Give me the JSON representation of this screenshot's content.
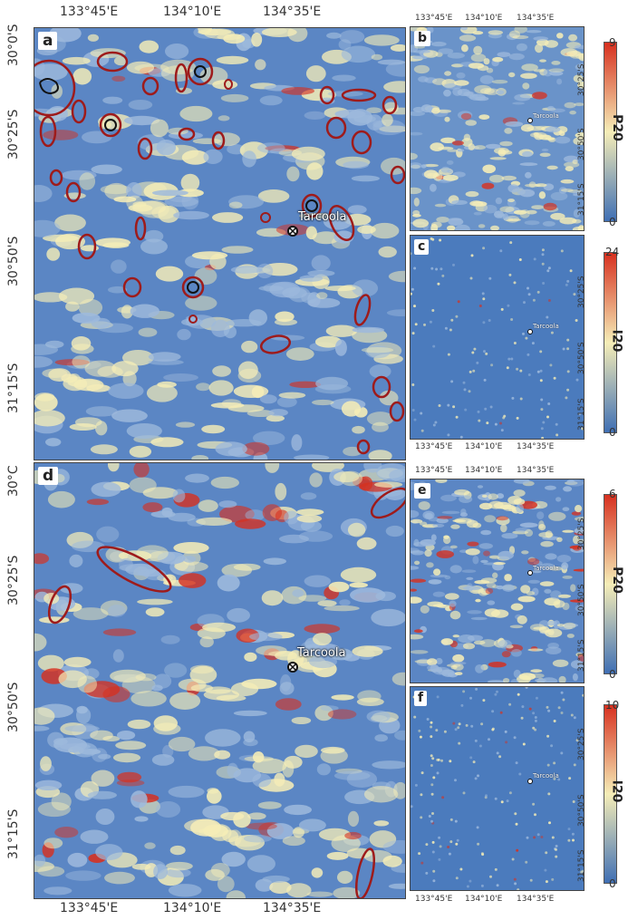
{
  "colors": {
    "low": "#3f6fb4",
    "mid": "#f5edb7",
    "high": "#d7301f",
    "ellipse": "#9e1b1b",
    "contour": "#1a1a1a"
  },
  "town": {
    "name": "Tarcoola",
    "icon": "town-marker-icon"
  },
  "x_ticks": [
    "133°45'E",
    "134°10'E",
    "134°35'E"
  ],
  "y_ticks_large": [
    "30°0'S",
    "30°25'S",
    "30°50'S",
    "31°15'S"
  ],
  "y_ticks_large_d": [
    "30°C",
    "30°25'S",
    "30°50'S",
    "31°15'S"
  ],
  "y_ticks_small": [
    "30°25'S",
    "30°50'S",
    "31°15'S"
  ],
  "panels": {
    "a": {
      "letter": "a"
    },
    "b": {
      "letter": "b",
      "cbar_title": "P20",
      "cbar_max": "9",
      "cbar_min": "0"
    },
    "c": {
      "letter": "c",
      "cbar_title": "I20",
      "cbar_max": "24",
      "cbar_min": "0"
    },
    "d": {
      "letter": "d"
    },
    "e": {
      "letter": "e",
      "cbar_title": "P20",
      "cbar_max": "6",
      "cbar_min": "0"
    },
    "f": {
      "letter": "f",
      "cbar_title": "I20",
      "cbar_max": "10",
      "cbar_min": "0"
    }
  }
}
